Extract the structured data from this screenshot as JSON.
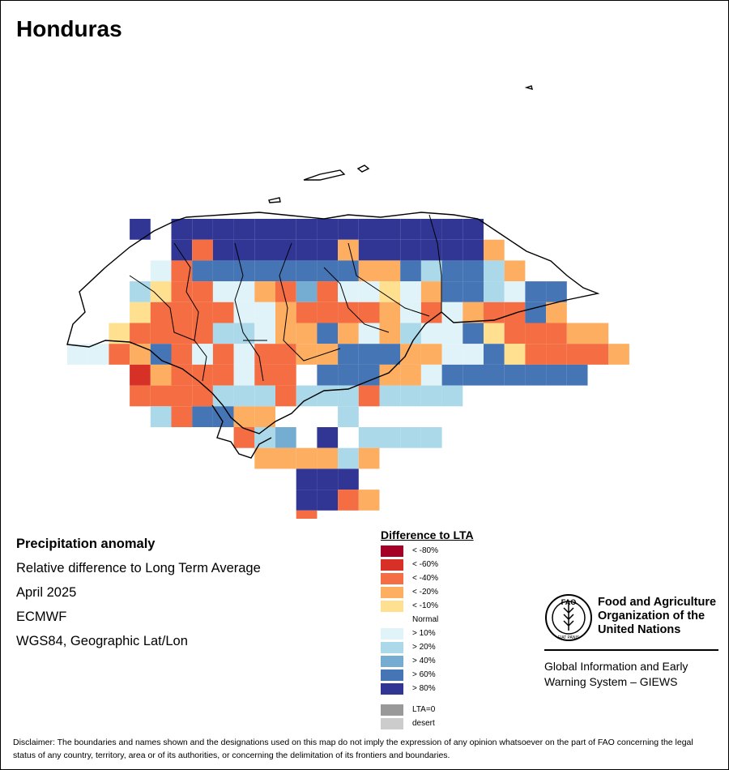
{
  "map": {
    "title": "Honduras",
    "info": {
      "variable": "Precipitation anomaly",
      "description": "Relative difference to Long Term Average",
      "period": "April 2025",
      "source": "ECMWF",
      "projection": "WGS84, Geographic Lat/Lon"
    },
    "legend": {
      "title": "Difference to LTA",
      "classes": [
        {
          "key": "n80",
          "label": "< -80%",
          "color": "#a50026"
        },
        {
          "key": "n60",
          "label": "< -60%",
          "color": "#d73027"
        },
        {
          "key": "n40",
          "label": "< -40%",
          "color": "#f46d43"
        },
        {
          "key": "n20",
          "label": "< -20%",
          "color": "#fdae61"
        },
        {
          "key": "n10",
          "label": "< -10%",
          "color": "#fee090"
        },
        {
          "key": "norm",
          "label": "Normal",
          "color": "#ffffff"
        },
        {
          "key": "p10",
          "label": "> 10%",
          "color": "#e0f3f8"
        },
        {
          "key": "p20",
          "label": "> 20%",
          "color": "#abd9e9"
        },
        {
          "key": "p40",
          "label": "> 40%",
          "color": "#74add1"
        },
        {
          "key": "p60",
          "label": "> 60%",
          "color": "#4575b4"
        },
        {
          "key": "p80",
          "label": "> 80%",
          "color": "#313695"
        }
      ],
      "extra": [
        {
          "key": "lta0",
          "label": "LTA=0",
          "color": "#999999"
        },
        {
          "key": "desert",
          "label": "desert",
          "color": "#cccccc"
        }
      ]
    },
    "grid_rows": [
      "...P.PPPPPPPPPPPPPPP",
      ".....POPPPPPPAPPPPPPA",
      "....LOPPPPPPPPAAPBPPBA",
      "...BYOOLLAOCOLLYLAPPBLPP",
      "..WYOOOOLLAOOOOALOLAOOPA",
      "..YOOOOBBLAAPALABLLPYOOOAA",
      "LLOAPOLOLOOAAPPPAALLPYOOOOA",
      "...RAOOOLOO.PPPAALPPPPPPP",
      "...OOOOBBBOBBBOBBBB",
      "....BOPPAA...B..",
      "........OBC.P.BBBB",
      ".........AAAAMA.",
      "...........PPP",
      "...........PPOA",
      "...........O"
    ],
    "disclaimer": "Disclaimer: The boundaries and names shown and the designations used on this map do not imply the expression of any opinion whatsoever on the part of FAO concerning the legal status of any country, territory, area or of its authorities, or concerning the delimitation of its frontiers and boundaries."
  },
  "org": {
    "name_lines": [
      "Food and Agriculture",
      "Organization of the",
      "United Nations"
    ],
    "logo_letters": "FAO",
    "logo_motto": "FIAT PANIS",
    "program_lines": [
      "Global Information and Early",
      "Warning System – GIEWS"
    ]
  }
}
